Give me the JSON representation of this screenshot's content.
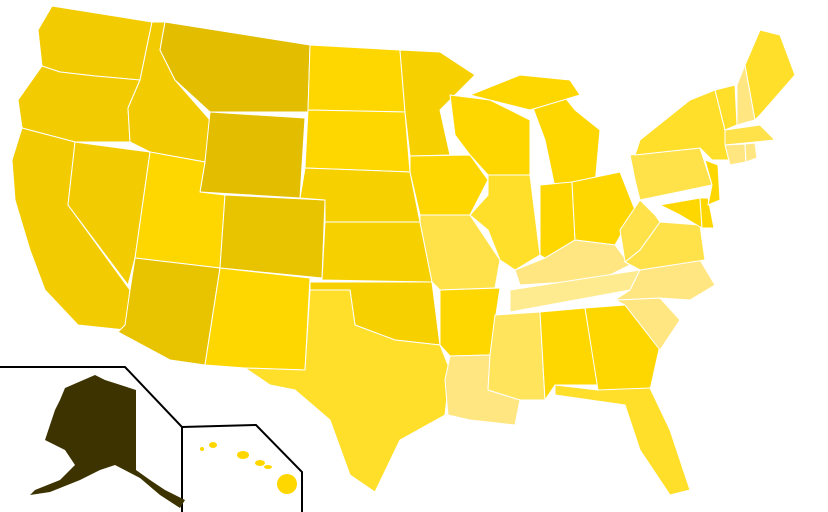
{
  "map": {
    "type": "choropleth",
    "background": "#ffffff",
    "border_color": "#ffffff",
    "inset_frame_color": "#000000",
    "state_fills": {
      "WA": "#f2cc00",
      "OR": "#f2cc00",
      "CA": "#f2cc00",
      "NV": "#f2cc00",
      "ID": "#f2cc00",
      "MT": "#e2bd00",
      "WY": "#e2bd00",
      "UT": "#ffd700",
      "AZ": "#e8c300",
      "CO": "#e8c300",
      "NM": "#ffd700",
      "ND": "#ffd700",
      "SD": "#ffd700",
      "NE": "#f7d000",
      "KS": "#f7d000",
      "OK": "#f7d000",
      "TX": "#ffdf2a",
      "MN": "#f7d000",
      "IA": "#ffd700",
      "MO": "#ffe24a",
      "AR": "#ffd700",
      "LA": "#ffe680",
      "WI": "#ffd700",
      "IL": "#ffdf2a",
      "MI": "#ffd700",
      "IN": "#ffd700",
      "OH": "#ffd700",
      "KY": "#ffe680",
      "TN": "#ffeb8f",
      "MS": "#ffe45c",
      "AL": "#ffd700",
      "GA": "#ffd700",
      "FL": "#ffdf2a",
      "SC": "#ffe680",
      "NC": "#ffe680",
      "VA": "#ffe24a",
      "WV": "#ffe24a",
      "PA": "#ffe24a",
      "NY": "#ffdf2a",
      "MD": "#ffd700",
      "DE": "#ffd700",
      "NJ": "#ffd700",
      "VT": "#ffdf2a",
      "NH": "#ffe680",
      "ME": "#ffdf2a",
      "MA": "#ffe24a",
      "CT": "#ffe680",
      "RI": "#ffe680",
      "AK": "#3d3300",
      "HI": "#ffd700"
    }
  }
}
